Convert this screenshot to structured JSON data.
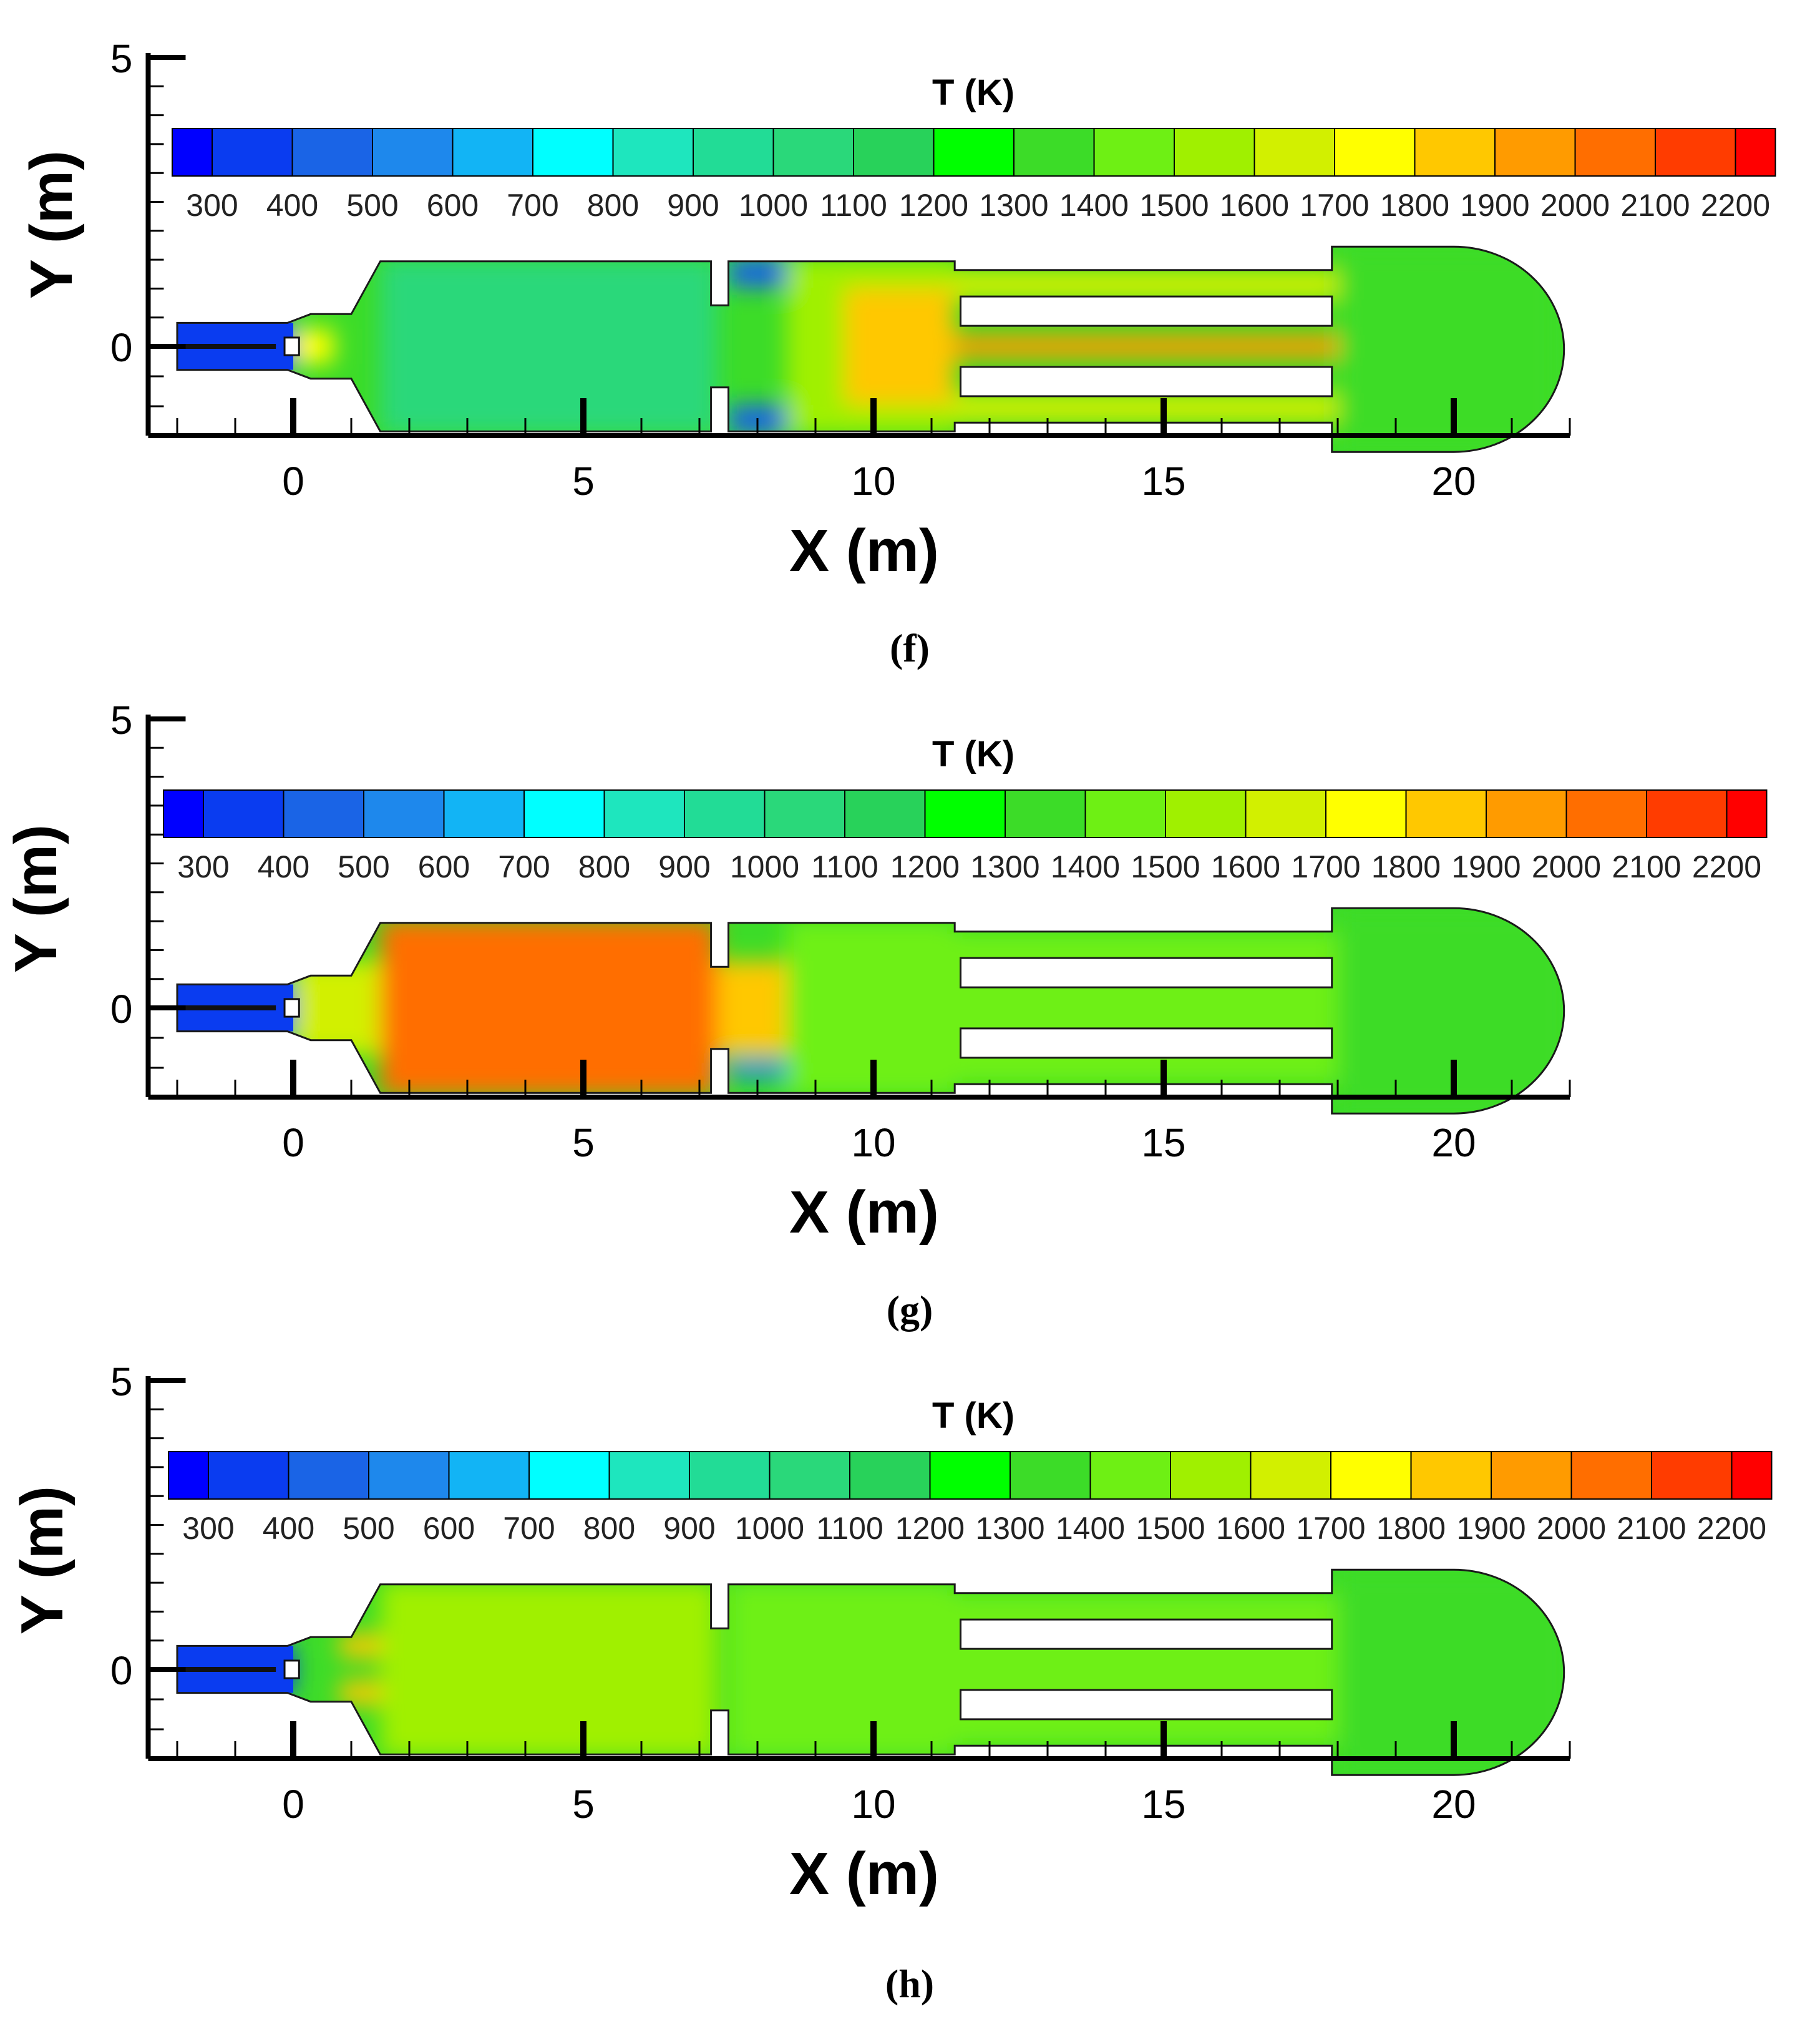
{
  "figure": {
    "colorbar_title": "T (K)",
    "colorbar_levels": [
      300,
      400,
      500,
      600,
      700,
      800,
      900,
      1000,
      1100,
      1200,
      1300,
      1400,
      1500,
      1600,
      1700,
      1800,
      1900,
      2000,
      2100,
      2200
    ],
    "colorbar_colors": [
      "#0000ff",
      "#0a3cf0",
      "#1a64e6",
      "#1e88ec",
      "#12b4f5",
      "#00ffff",
      "#1ee6be",
      "#22dc96",
      "#2ad87a",
      "#28d25a",
      "#00ff00",
      "#3cdc28",
      "#6ef014",
      "#a0f000",
      "#d2f000",
      "#ffff00",
      "#ffc800",
      "#ff9b00",
      "#ff6e00",
      "#ff3c00",
      "#ff0000"
    ],
    "xlabel": "X (m)",
    "ylabel": "Y (m)",
    "xticks": [
      "0",
      "5",
      "10",
      "15",
      "20"
    ],
    "ytick_labels": [
      "5",
      "0"
    ]
  },
  "chart_data": [
    {
      "type": "heatmap",
      "panel_label": "(f)",
      "title": "T (K)",
      "xlabel": "X (m)",
      "ylabel": "Y (m)",
      "xlim": [
        -2.5,
        22
      ],
      "ylim": [
        -2,
        5
      ],
      "colorbar": {
        "min": 300,
        "max": 2200,
        "step": 100
      },
      "regions": [
        {
          "x": [
            -2,
            0
          ],
          "y": [
            -0.4,
            0.4
          ],
          "T": 400
        },
        {
          "x": [
            0,
            0.7
          ],
          "y": [
            -0.3,
            0.3
          ],
          "T": 1800
        },
        {
          "x": [
            1.5,
            7.3
          ],
          "y": [
            -1.5,
            1.5
          ],
          "T": 1100
        },
        {
          "x": [
            7.5,
            8.5
          ],
          "y": [
            1.0,
            1.5
          ],
          "T": 500
        },
        {
          "x": [
            7.5,
            8.5
          ],
          "y": [
            -1.5,
            -1.0
          ],
          "T": 500
        },
        {
          "x": [
            8.5,
            11.4
          ],
          "y": [
            -1.5,
            1.5
          ],
          "T": 1600
        },
        {
          "x": [
            9.5,
            11.4
          ],
          "y": [
            -1.0,
            1.0
          ],
          "T": 1900
        },
        {
          "x": [
            11.4,
            18
          ],
          "y": [
            0.8,
            1.3
          ],
          "T": 1700
        },
        {
          "x": [
            11.4,
            18
          ],
          "y": [
            -0.2,
            0.2
          ],
          "T": 2000
        },
        {
          "x": [
            11.4,
            18
          ],
          "y": [
            -1.3,
            -0.8
          ],
          "T": 1700
        },
        {
          "x": [
            18,
            21.8
          ],
          "y": [
            -1.8,
            1.7
          ],
          "T": 1400
        }
      ]
    },
    {
      "type": "heatmap",
      "panel_label": "(g)",
      "title": "T (K)",
      "xlabel": "X (m)",
      "ylabel": "Y (m)",
      "xlim": [
        -2.5,
        22
      ],
      "ylim": [
        -2,
        5
      ],
      "colorbar": {
        "min": 300,
        "max": 2200,
        "step": 100
      },
      "regions": [
        {
          "x": [
            -2,
            0
          ],
          "y": [
            -0.4,
            0.4
          ],
          "T": 400
        },
        {
          "x": [
            0,
            1.5
          ],
          "y": [
            -0.8,
            0.8
          ],
          "T": 1700
        },
        {
          "x": [
            1.5,
            7.3
          ],
          "y": [
            -1.5,
            1.5
          ],
          "T": 2100
        },
        {
          "x": [
            7.3,
            9.0
          ],
          "y": [
            -0.8,
            0.8
          ],
          "T": 1900
        },
        {
          "x": [
            7.5,
            8.5
          ],
          "y": [
            -1.2,
            -0.9
          ],
          "T": 600
        },
        {
          "x": [
            8.5,
            11.4
          ],
          "y": [
            -1.5,
            1.5
          ],
          "T": 1500
        },
        {
          "x": [
            11.4,
            18
          ],
          "y": [
            -1.3,
            1.3
          ],
          "T": 1500
        },
        {
          "x": [
            18,
            22
          ],
          "y": [
            -1.8,
            1.7
          ],
          "T": 1400
        }
      ]
    },
    {
      "type": "heatmap",
      "panel_label": "(h)",
      "title": "T (K)",
      "xlabel": "X (m)",
      "ylabel": "Y (m)",
      "xlim": [
        -2.5,
        22
      ],
      "ylim": [
        -2,
        5
      ],
      "colorbar": {
        "min": 300,
        "max": 2200,
        "step": 100
      },
      "regions": [
        {
          "x": [
            -2,
            0
          ],
          "y": [
            -0.4,
            0.4
          ],
          "T": 400
        },
        {
          "x": [
            0.8,
            3.0
          ],
          "y": [
            0.2,
            0.6
          ],
          "T": 1900
        },
        {
          "x": [
            0.8,
            3.0
          ],
          "y": [
            -0.6,
            -0.2
          ],
          "T": 1900
        },
        {
          "x": [
            1.5,
            7.3
          ],
          "y": [
            -1.5,
            1.5
          ],
          "T": 1600
        },
        {
          "x": [
            7.5,
            11.4
          ],
          "y": [
            -1.5,
            1.5
          ],
          "T": 1500
        },
        {
          "x": [
            11.4,
            18
          ],
          "y": [
            -1.3,
            1.3
          ],
          "T": 1500
        },
        {
          "x": [
            18,
            22
          ],
          "y": [
            -1.8,
            1.7
          ],
          "T": 1400
        }
      ]
    }
  ]
}
